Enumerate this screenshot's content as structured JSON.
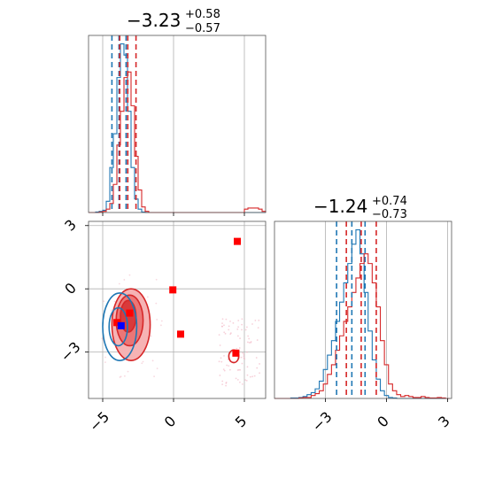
{
  "colors": {
    "blue": "#1f77b4",
    "red": "#d62728",
    "marker_blue": "#0000ff",
    "marker_red": "#ff0000"
  },
  "chart_data": [
    {
      "panel": "top-left",
      "type": "histogram",
      "title": {
        "main": "−3.23",
        "plus": "+0.58",
        "minus": "−0.57"
      },
      "xlim": [
        -6,
        6.5
      ],
      "grid": true,
      "bins": [
        -6.0,
        -5.75,
        -5.5,
        -5.25,
        -5.0,
        -4.75,
        -4.5,
        -4.25,
        -4.0,
        -3.75,
        -3.5,
        -3.25,
        -3.0,
        -2.75,
        -2.5,
        -2.25,
        -2.0,
        -1.75,
        -1.5,
        -1.25,
        -1.0,
        -0.75,
        -0.5,
        -0.25,
        0.0,
        0.25,
        0.5,
        0.75,
        1.0,
        1.25,
        1.5,
        1.75,
        2.0,
        2.25,
        2.5,
        2.75,
        3.0,
        3.25,
        3.5,
        3.75,
        4.0,
        4.25,
        4.5,
        4.75,
        5.0,
        5.25,
        5.5,
        5.75,
        6.0,
        6.25,
        6.5
      ],
      "series": [
        {
          "color": "blue",
          "counts": [
            0,
            0,
            0.5,
            1,
            2,
            10,
            40,
            70,
            120,
            150,
            140,
            90,
            40,
            12,
            3,
            0.5,
            0,
            0,
            0,
            0,
            0,
            0,
            0,
            0,
            0,
            0,
            0,
            0,
            0,
            0,
            0,
            0,
            0,
            0,
            0,
            0,
            0,
            0,
            0,
            0,
            0,
            0,
            0,
            0,
            0,
            0,
            0,
            0,
            0,
            0
          ]
        },
        {
          "color": "red",
          "counts": [
            0,
            0,
            0,
            0.5,
            1,
            3,
            8,
            25,
            60,
            90,
            120,
            125,
            95,
            50,
            20,
            5,
            1,
            0,
            0,
            0,
            0,
            0,
            0,
            0,
            0,
            0,
            0,
            0,
            0,
            0,
            0,
            0,
            0,
            0,
            0,
            0,
            0,
            0,
            0,
            0,
            0,
            0,
            0,
            0,
            3,
            4,
            4,
            4,
            3,
            1
          ]
        }
      ],
      "quantile_lines": [
        {
          "color": "blue",
          "x": [
            -4.35,
            -3.85,
            -3.35
          ]
        },
        {
          "color": "red",
          "x": [
            -3.8,
            -3.23,
            -2.65
          ]
        }
      ]
    },
    {
      "panel": "bottom-right",
      "type": "histogram",
      "title": {
        "main": "−1.24",
        "plus": "+0.74",
        "minus": "−0.73"
      },
      "xlim": [
        -5.5,
        3.2
      ],
      "xticks": [
        -3,
        0,
        3
      ],
      "xtick_labels": [
        "−3",
        "0",
        "3"
      ],
      "grid": true,
      "bins": [
        -5.5,
        -5.3,
        -5.1,
        -4.9,
        -4.7,
        -4.5,
        -4.3,
        -4.1,
        -3.9,
        -3.7,
        -3.5,
        -3.3,
        -3.1,
        -2.9,
        -2.7,
        -2.5,
        -2.3,
        -2.1,
        -1.9,
        -1.7,
        -1.5,
        -1.3,
        -1.1,
        -0.9,
        -0.7,
        -0.5,
        -0.3,
        -0.1,
        0.1,
        0.3,
        0.5,
        0.7,
        0.9,
        1.1,
        1.3,
        1.5,
        1.7,
        1.9,
        2.1,
        2.3,
        2.5,
        2.7,
        2.9,
        3.1
      ],
      "series": [
        {
          "color": "blue",
          "counts": [
            0,
            0,
            0,
            0,
            0.5,
            0.5,
            1,
            2,
            4,
            6,
            10,
            18,
            30,
            45,
            60,
            80,
            100,
            120,
            140,
            160,
            175,
            150,
            110,
            70,
            40,
            20,
            8,
            3,
            1,
            0.5,
            0,
            0,
            0,
            0,
            0,
            0,
            0,
            0,
            0,
            0,
            0,
            0,
            0
          ]
        },
        {
          "color": "red",
          "counts": [
            0,
            0,
            0,
            0,
            0,
            0,
            0.5,
            1,
            1,
            3,
            5,
            8,
            15,
            25,
            35,
            50,
            65,
            80,
            95,
            110,
            125,
            140,
            150,
            140,
            120,
            95,
            60,
            35,
            15,
            8,
            4,
            2,
            3,
            2,
            1,
            1,
            2,
            1,
            0.5,
            0.5,
            1,
            0.5,
            0
          ]
        }
      ],
      "quantile_lines": [
        {
          "color": "blue",
          "x": [
            -2.45,
            -1.7,
            -1.05
          ]
        },
        {
          "color": "red",
          "x": [
            -1.97,
            -1.24,
            -0.5
          ]
        }
      ]
    },
    {
      "panel": "bottom-left",
      "type": "contour-scatter",
      "xlim": [
        -6,
        6.5
      ],
      "ylim": [
        -5.2,
        3.2
      ],
      "xticks": [
        -5,
        0,
        5
      ],
      "xtick_labels": [
        "−5",
        "0",
        "5"
      ],
      "yticks": [
        -3,
        0,
        3
      ],
      "ytick_labels": [
        "−3",
        "0",
        "3"
      ],
      "grid": true,
      "red_contours": [
        {
          "level": "outer",
          "cx": -3.0,
          "cy": -1.7,
          "rx": 1.35,
          "ry": 1.7
        },
        {
          "level": "middle",
          "cx": -3.1,
          "cy": -1.5,
          "rx": 0.95,
          "ry": 1.2
        },
        {
          "level": "inner",
          "cx": -3.2,
          "cy": -1.3,
          "rx": 0.55,
          "ry": 0.75
        }
      ],
      "blue_contours": [
        {
          "level": "outer",
          "cx": -3.8,
          "cy": -1.8,
          "rx": 1.2,
          "ry": 1.6
        },
        {
          "level": "inner",
          "cx": -3.9,
          "cy": -1.8,
          "rx": 0.65,
          "ry": 0.9
        }
      ],
      "red_island": {
        "cx": 4.25,
        "cy": -3.2,
        "rx": 0.35,
        "ry": 0.3
      },
      "markers": [
        {
          "color": "marker_red",
          "x": -4.0,
          "y": -1.6
        },
        {
          "color": "marker_red",
          "x": -3.1,
          "y": -1.15
        },
        {
          "color": "marker_red",
          "x": -0.05,
          "y": -0.05
        },
        {
          "color": "marker_red",
          "x": 0.5,
          "y": -2.15
        },
        {
          "color": "marker_red",
          "x": 4.5,
          "y": 2.25
        },
        {
          "color": "marker_red",
          "x": 4.4,
          "y": -3.05
        },
        {
          "color": "marker_blue",
          "x": -3.7,
          "y": -1.75
        }
      ]
    }
  ]
}
